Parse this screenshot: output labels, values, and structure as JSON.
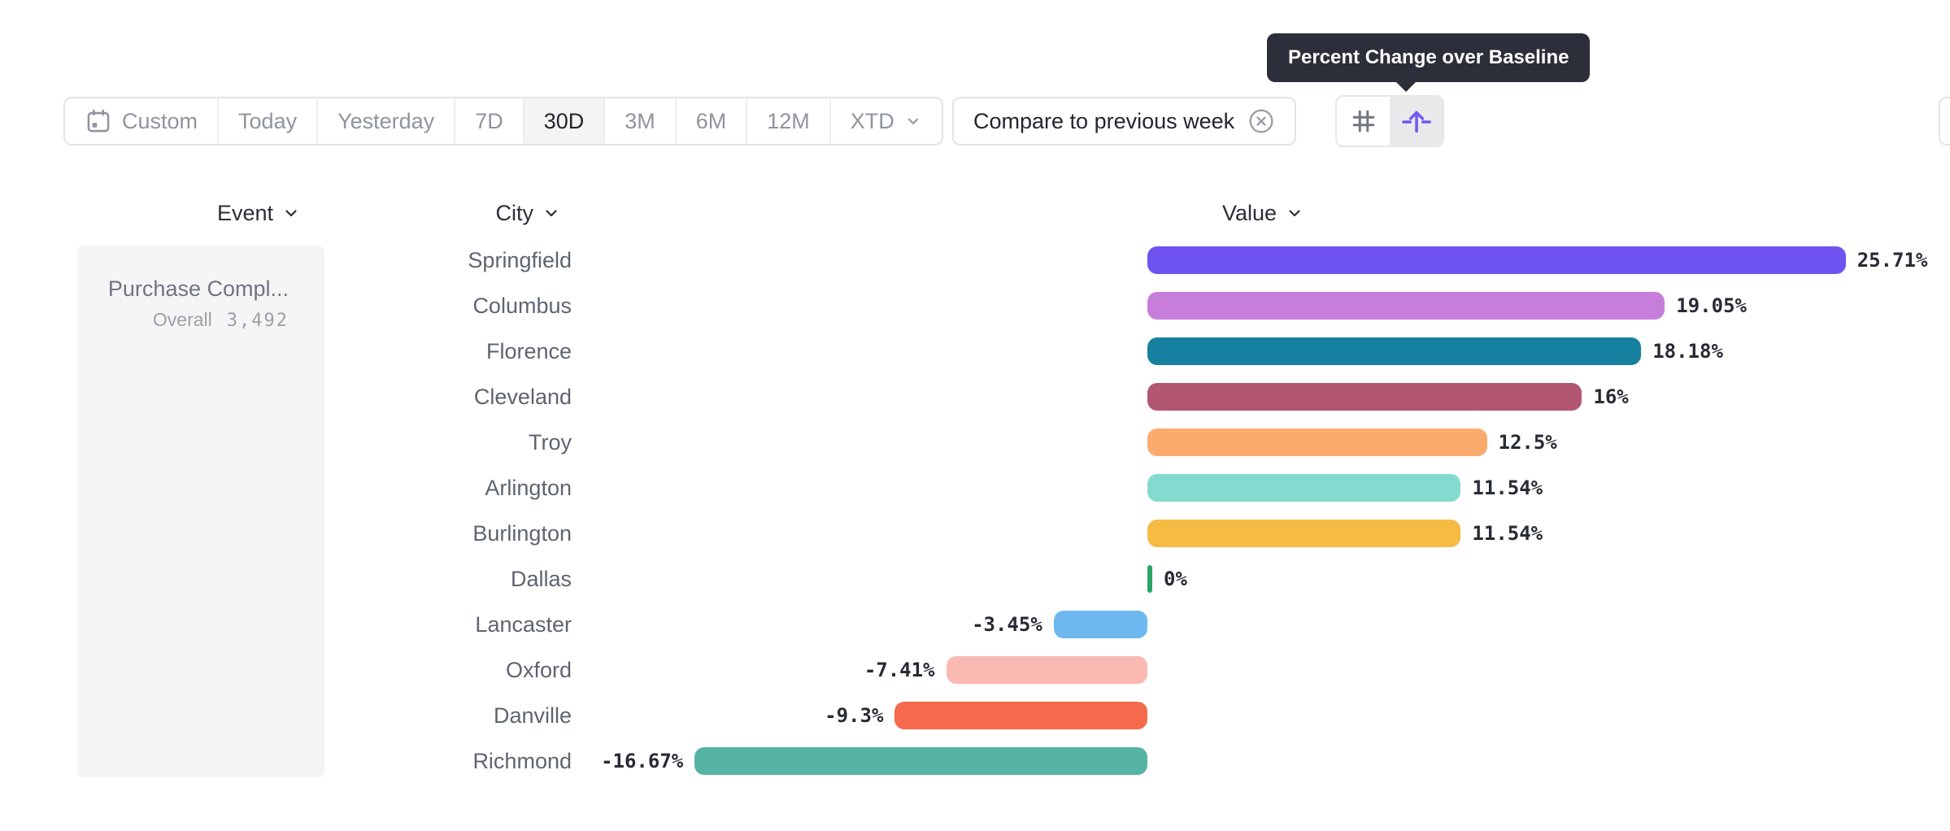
{
  "toolbar": {
    "date_ranges": [
      {
        "label": "Custom",
        "icon": "calendar-icon",
        "selected": false
      },
      {
        "label": "Today",
        "selected": false
      },
      {
        "label": "Yesterday",
        "selected": false
      },
      {
        "label": "7D",
        "selected": false
      },
      {
        "label": "30D",
        "selected": true
      },
      {
        "label": "3M",
        "selected": false
      },
      {
        "label": "6M",
        "selected": false
      },
      {
        "label": "12M",
        "selected": false
      },
      {
        "label": "XTD",
        "chevron": true,
        "selected": false
      }
    ],
    "compare_label": "Compare to previous week",
    "view_toggle": {
      "left_icon": "hash-icon",
      "right_icon": "baseline-arrow-icon",
      "selected": "right"
    }
  },
  "tooltip": {
    "text": "Percent Change over Baseline",
    "background": "#2c2f39"
  },
  "headers": {
    "event": "Event",
    "city": "City",
    "value": "Value"
  },
  "event_panel": {
    "title": "Purchase Compl...",
    "metric_label": "Overall",
    "metric_value": "3,492"
  },
  "chart_data": {
    "type": "bar",
    "orientation": "horizontal",
    "title": "Percent Change over Baseline",
    "categories": [
      "Springfield",
      "Columbus",
      "Florence",
      "Cleveland",
      "Troy",
      "Arlington",
      "Burlington",
      "Dallas",
      "Lancaster",
      "Oxford",
      "Danville",
      "Richmond"
    ],
    "values": [
      25.71,
      19.05,
      18.18,
      16,
      12.5,
      11.54,
      11.54,
      0,
      -3.45,
      -7.41,
      -9.3,
      -16.67
    ],
    "value_labels": [
      "25.71%",
      "19.05%",
      "18.18%",
      "16%",
      "12.5%",
      "11.54%",
      "11.54%",
      "0%",
      "-3.45%",
      "-7.41%",
      "-9.3%",
      "-16.67%"
    ],
    "colors": [
      "#6e53f1",
      "#c77edb",
      "#1680a0",
      "#b25671",
      "#fcab6f",
      "#83dbd0",
      "#f5bb43",
      "#2aa567",
      "#6cb8ef",
      "#fab9b2",
      "#f56a4c",
      "#56b4a4"
    ],
    "unit": "%",
    "xlim": [
      -18,
      27
    ],
    "grid": false,
    "legend": false
  }
}
